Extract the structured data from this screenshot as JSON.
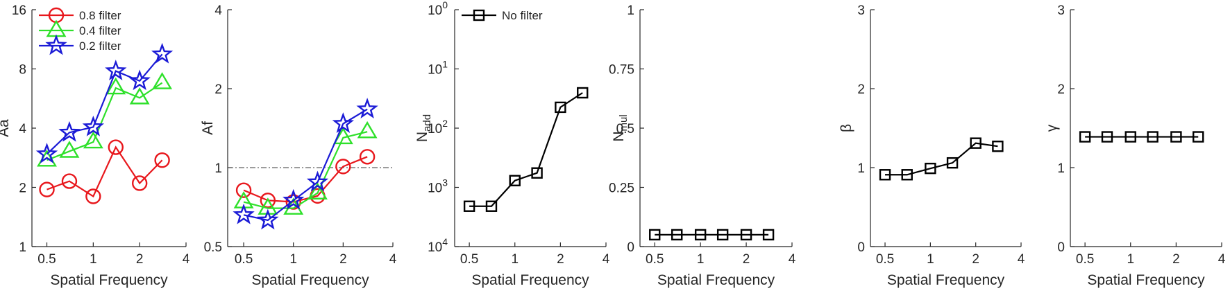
{
  "chart_data": [
    {
      "type": "line",
      "xlabel": "Spatial Frequency",
      "ylabel": "Aa",
      "xscale": "log2",
      "yscale": "log2",
      "xlim": [
        0.4,
        4
      ],
      "ylim": [
        1,
        16
      ],
      "xticks": [
        0.5,
        1,
        2,
        4
      ],
      "xtick_labels": [
        "0.5",
        "1",
        "2",
        "4"
      ],
      "yticks": [
        1,
        2,
        4,
        8,
        16
      ],
      "ytick_labels": [
        "1",
        "2",
        "4",
        "8",
        "16"
      ],
      "legend_position": "top-left",
      "x": [
        0.5,
        0.7,
        1.0,
        1.4,
        2.0,
        2.8
      ],
      "series": [
        {
          "name": "0.8 filter",
          "color": "#e8171c",
          "marker": "circle",
          "values": [
            1.95,
            2.15,
            1.8,
            3.2,
            2.1,
            2.75
          ]
        },
        {
          "name": "0.4 filter",
          "color": "#2ee02a",
          "marker": "triangle",
          "values": [
            2.75,
            3.05,
            3.4,
            6.4,
            5.7,
            6.8
          ]
        },
        {
          "name": "0.2 filter",
          "color": "#1a1ad6",
          "marker": "star",
          "values": [
            2.95,
            3.8,
            4.05,
            7.8,
            6.95,
            9.5
          ]
        }
      ]
    },
    {
      "type": "line",
      "xlabel": "Spatial Frequency",
      "ylabel": "Af",
      "xscale": "log2",
      "yscale": "log2",
      "xlim": [
        0.4,
        4
      ],
      "ylim": [
        0.5,
        4
      ],
      "xticks": [
        0.5,
        1,
        2,
        4
      ],
      "xtick_labels": [
        "0.5",
        "1",
        "2",
        "4"
      ],
      "yticks": [
        0.5,
        1,
        2,
        4
      ],
      "ytick_labels": [
        "0.5",
        "1",
        "2",
        "4"
      ],
      "reference_line": {
        "y": 1,
        "style": "dash-dot"
      },
      "x": [
        0.5,
        0.7,
        1.0,
        1.4,
        2.0,
        2.8
      ],
      "series": [
        {
          "name": "0.8 filter",
          "color": "#e8171c",
          "marker": "circle",
          "values": [
            0.82,
            0.75,
            0.74,
            0.78,
            1.01,
            1.1
          ]
        },
        {
          "name": "0.4 filter",
          "color": "#2ee02a",
          "marker": "triangle",
          "values": [
            0.74,
            0.7,
            0.7,
            0.8,
            1.3,
            1.37
          ]
        },
        {
          "name": "0.2 filter",
          "color": "#1a1ad6",
          "marker": "star",
          "values": [
            0.66,
            0.63,
            0.75,
            0.88,
            1.47,
            1.67
          ]
        }
      ]
    },
    {
      "type": "line",
      "xlabel": "Spatial Frequency",
      "ylabel": "N",
      "ylabel_sub": "add",
      "xscale": "log2",
      "yscale": "log10",
      "xlim": [
        0.4,
        4
      ],
      "ylim": [
        0.0001,
        1
      ],
      "xticks": [
        0.5,
        1,
        2,
        4
      ],
      "xtick_labels": [
        "0.5",
        "1",
        "2",
        "4"
      ],
      "yticks": [
        1,
        0.1,
        0.01,
        0.001,
        0.0001
      ],
      "ytick_labels": [
        {
          "base": "10",
          "exp": "0"
        },
        {
          "base": "10",
          "exp": "1"
        },
        {
          "base": "10",
          "exp": "2"
        },
        {
          "base": "10",
          "exp": "3"
        },
        {
          "base": "10",
          "exp": "4"
        }
      ],
      "legend_position": "top-left",
      "x": [
        0.5,
        0.7,
        1.0,
        1.4,
        2.0,
        2.8
      ],
      "series": [
        {
          "name": "No filter",
          "color": "#000000",
          "marker": "square",
          "values": [
            0.00048,
            0.00048,
            0.0013,
            0.00175,
            0.0225,
            0.0395
          ]
        }
      ]
    },
    {
      "type": "line",
      "xlabel": "Spatial Frequency",
      "ylabel": "N",
      "ylabel_sub": "mul",
      "xscale": "log2",
      "yscale": "linear",
      "xlim": [
        0.4,
        4
      ],
      "ylim": [
        0,
        1
      ],
      "xticks": [
        0.5,
        1,
        2,
        4
      ],
      "xtick_labels": [
        "0.5",
        "1",
        "2",
        "4"
      ],
      "yticks": [
        0,
        0.25,
        0.5,
        0.75,
        1
      ],
      "ytick_labels": [
        "0",
        "0.25",
        "0.5",
        "0.75",
        "1"
      ],
      "x": [
        0.5,
        0.7,
        1.0,
        1.4,
        2.0,
        2.8
      ],
      "series": [
        {
          "color": "#000000",
          "marker": "square",
          "values": [
            0.05,
            0.05,
            0.05,
            0.05,
            0.05,
            0.05
          ]
        }
      ]
    },
    {
      "type": "line",
      "xlabel": "Spatial Frequency",
      "ylabel": "β",
      "xscale": "log2",
      "yscale": "linear",
      "xlim": [
        0.4,
        4
      ],
      "ylim": [
        0,
        3
      ],
      "xticks": [
        0.5,
        1,
        2,
        4
      ],
      "xtick_labels": [
        "0.5",
        "1",
        "2",
        "4"
      ],
      "yticks": [
        0,
        1,
        2,
        3
      ],
      "ytick_labels": [
        "0",
        "1",
        "2",
        "3"
      ],
      "x": [
        0.5,
        0.7,
        1.0,
        1.4,
        2.0,
        2.8
      ],
      "series": [
        {
          "color": "#000000",
          "marker": "square",
          "values": [
            0.91,
            0.91,
            0.99,
            1.06,
            1.31,
            1.27
          ]
        }
      ]
    },
    {
      "type": "line",
      "xlabel": "Spatial Frequency",
      "ylabel": "γ",
      "xscale": "log2",
      "yscale": "linear",
      "xlim": [
        0.4,
        4
      ],
      "ylim": [
        0,
        3
      ],
      "xticks": [
        0.5,
        1,
        2,
        4
      ],
      "xtick_labels": [
        "0.5",
        "1",
        "2",
        "4"
      ],
      "yticks": [
        0,
        1,
        2,
        3
      ],
      "ytick_labels": [
        "0",
        "1",
        "2",
        "3"
      ],
      "x": [
        0.5,
        0.7,
        1.0,
        1.4,
        2.0,
        2.8
      ],
      "series": [
        {
          "color": "#000000",
          "marker": "square",
          "values": [
            1.39,
            1.39,
            1.39,
            1.39,
            1.39,
            1.39
          ]
        }
      ]
    }
  ]
}
